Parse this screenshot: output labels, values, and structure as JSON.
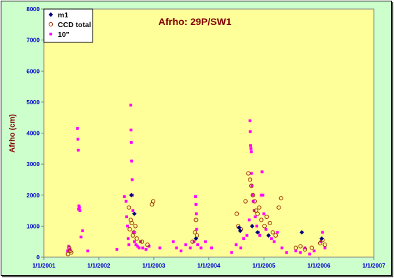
{
  "chart_data": {
    "type": "scatter",
    "title": "Afrho: 29P/SW1",
    "ylabel": "Afrho (cm)",
    "xlabel": "",
    "ylim": [
      0,
      8000
    ],
    "yticks": [
      "0",
      "1000",
      "2000",
      "3000",
      "4000",
      "5000",
      "6000",
      "7000",
      "8000"
    ],
    "xlim": [
      "2001-01-01",
      "2007-01-01"
    ],
    "xticks": [
      "1/1/2001",
      "1/1/2002",
      "1/1/2003",
      "1/1/2004",
      "1/1/2005",
      "1/1/2006",
      "1/1/2007"
    ],
    "grid": false,
    "legend": "top-left",
    "colors": {
      "frame_bg": "#ccffcc",
      "plot_bg": "#ffff99",
      "m1": "#000080",
      "ccd_total": "#993300",
      "ten_arcsec": "#ff00ff",
      "tick_text": "#0000cc",
      "title_text": "#800000"
    },
    "series": [
      {
        "name": "m1",
        "marker": "diamond",
        "points": [
          [
            "2002-08-05",
            2000
          ],
          [
            "2002-08-25",
            1400
          ],
          [
            "2003-10-08",
            600
          ],
          [
            "2004-07-20",
            950
          ],
          [
            "2004-07-28",
            850
          ],
          [
            "2004-10-15",
            1000
          ],
          [
            "2004-11-20",
            800
          ],
          [
            "2005-02-01",
            700
          ],
          [
            "2005-09-10",
            800
          ],
          [
            "2006-01-20",
            600
          ]
        ]
      },
      {
        "name": "CCD total",
        "marker": "circle",
        "points": [
          [
            "2001-06-10",
            100
          ],
          [
            "2001-06-18",
            300
          ],
          [
            "2001-06-25",
            200
          ],
          [
            "2001-07-02",
            150
          ],
          [
            "2002-07-20",
            1600
          ],
          [
            "2002-07-25",
            900
          ],
          [
            "2002-08-01",
            1200
          ],
          [
            "2002-08-08",
            1100
          ],
          [
            "2002-08-15",
            700
          ],
          [
            "2002-08-22",
            800
          ],
          [
            "2002-09-01",
            1000
          ],
          [
            "2002-09-10",
            600
          ],
          [
            "2002-10-15",
            500
          ],
          [
            "2002-11-20",
            400
          ],
          [
            "2002-12-20",
            1700
          ],
          [
            "2002-12-28",
            1800
          ],
          [
            "2003-09-15",
            500
          ],
          [
            "2003-10-01",
            800
          ],
          [
            "2003-10-08",
            1200
          ],
          [
            "2003-10-15",
            700
          ],
          [
            "2004-07-05",
            1400
          ],
          [
            "2004-07-15",
            1000
          ],
          [
            "2004-08-01",
            900
          ],
          [
            "2004-09-01",
            1800
          ],
          [
            "2004-09-20",
            2700
          ],
          [
            "2004-10-01",
            2500
          ],
          [
            "2004-10-10",
            2300
          ],
          [
            "2004-10-20",
            2000
          ],
          [
            "2004-11-01",
            1800
          ],
          [
            "2004-11-10",
            1500
          ],
          [
            "2004-11-20",
            1400
          ],
          [
            "2004-12-01",
            1600
          ],
          [
            "2004-12-15",
            1200
          ],
          [
            "2005-01-05",
            1000
          ],
          [
            "2005-01-20",
            1300
          ],
          [
            "2005-02-10",
            1100
          ],
          [
            "2005-03-01",
            800
          ],
          [
            "2005-03-20",
            700
          ],
          [
            "2005-04-10",
            1600
          ],
          [
            "2005-04-25",
            1900
          ],
          [
            "2005-08-01",
            300
          ],
          [
            "2005-09-01",
            350
          ],
          [
            "2005-10-01",
            250
          ],
          [
            "2005-11-15",
            300
          ],
          [
            "2006-01-10",
            450
          ],
          [
            "2006-01-25",
            550
          ],
          [
            "2006-02-10",
            400
          ]
        ]
      },
      {
        "name": "10\"",
        "marker": "square",
        "points": [
          [
            "2001-06-08",
            200
          ],
          [
            "2001-06-15",
            350
          ],
          [
            "2001-06-22",
            250
          ],
          [
            "2001-08-12",
            4150
          ],
          [
            "2001-08-15",
            3800
          ],
          [
            "2001-08-18",
            3450
          ],
          [
            "2001-08-20",
            1550
          ],
          [
            "2001-08-22",
            1650
          ],
          [
            "2001-08-25",
            1600
          ],
          [
            "2001-08-28",
            1500
          ],
          [
            "2001-09-05",
            650
          ],
          [
            "2001-09-15",
            850
          ],
          [
            "2001-10-20",
            200
          ],
          [
            "2002-05-01",
            250
          ],
          [
            "2002-06-20",
            1950
          ],
          [
            "2002-07-01",
            1800
          ],
          [
            "2002-07-05",
            1300
          ],
          [
            "2002-07-10",
            1000
          ],
          [
            "2002-07-15",
            600
          ],
          [
            "2002-07-20",
            400
          ],
          [
            "2002-08-01",
            4900
          ],
          [
            "2002-08-03",
            4100
          ],
          [
            "2002-08-05",
            3700
          ],
          [
            "2002-08-07",
            3100
          ],
          [
            "2002-08-10",
            2500
          ],
          [
            "2002-08-12",
            2000
          ],
          [
            "2002-08-15",
            1500
          ],
          [
            "2002-08-20",
            800
          ],
          [
            "2002-08-25",
            500
          ],
          [
            "2002-09-05",
            400
          ],
          [
            "2002-09-15",
            350
          ],
          [
            "2002-09-25",
            300
          ],
          [
            "2002-10-05",
            500
          ],
          [
            "2002-10-20",
            300
          ],
          [
            "2002-11-10",
            250
          ],
          [
            "2002-12-01",
            350
          ],
          [
            "2003-02-10",
            300
          ],
          [
            "2003-05-10",
            500
          ],
          [
            "2003-06-01",
            300
          ],
          [
            "2003-07-01",
            200
          ],
          [
            "2003-08-01",
            400
          ],
          [
            "2003-09-01",
            300
          ],
          [
            "2003-09-25",
            500
          ],
          [
            "2003-10-05",
            1950
          ],
          [
            "2003-10-08",
            1700
          ],
          [
            "2003-10-10",
            1400
          ],
          [
            "2003-10-12",
            900
          ],
          [
            "2003-10-20",
            400
          ],
          [
            "2003-11-10",
            300
          ],
          [
            "2003-12-10",
            500
          ],
          [
            "2004-01-20",
            300
          ],
          [
            "2004-06-01",
            150
          ],
          [
            "2004-07-01",
            400
          ],
          [
            "2004-08-01",
            300
          ],
          [
            "2004-08-20",
            600
          ],
          [
            "2004-09-10",
            700
          ],
          [
            "2004-09-25",
            1200
          ],
          [
            "2004-10-01",
            4400
          ],
          [
            "2004-10-03",
            4050
          ],
          [
            "2004-10-05",
            3600
          ],
          [
            "2004-10-07",
            3500
          ],
          [
            "2004-10-09",
            3400
          ],
          [
            "2004-10-11",
            2700
          ],
          [
            "2004-10-14",
            2300
          ],
          [
            "2004-10-18",
            2000
          ],
          [
            "2004-10-22",
            1800
          ],
          [
            "2004-10-28",
            1500
          ],
          [
            "2004-11-05",
            1300
          ],
          [
            "2004-11-15",
            1000
          ],
          [
            "2004-11-25",
            800
          ],
          [
            "2004-12-05",
            700
          ],
          [
            "2004-12-15",
            2000
          ],
          [
            "2004-12-20",
            2750
          ],
          [
            "2004-12-25",
            2000
          ],
          [
            "2005-01-01",
            1400
          ],
          [
            "2005-01-15",
            900
          ],
          [
            "2005-02-01",
            700
          ],
          [
            "2005-02-20",
            600
          ],
          [
            "2005-03-10",
            500
          ],
          [
            "2005-04-01",
            800
          ],
          [
            "2005-05-01",
            300
          ],
          [
            "2005-06-01",
            150
          ],
          [
            "2005-08-01",
            200
          ],
          [
            "2005-09-01",
            150
          ],
          [
            "2005-10-01",
            300
          ],
          [
            "2005-11-01",
            100
          ],
          [
            "2005-12-01",
            200
          ],
          [
            "2006-01-15",
            500
          ],
          [
            "2006-01-25",
            800
          ],
          [
            "2006-02-10",
            300
          ]
        ]
      }
    ]
  }
}
